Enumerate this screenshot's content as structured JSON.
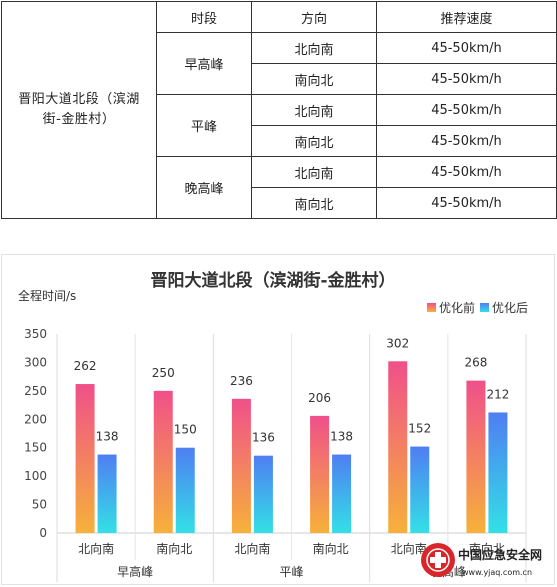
{
  "table": {
    "road_name": "晋阳大道北段（滨湖街-金胜村）",
    "headers": [
      "时段",
      "方向",
      "推荐速度"
    ],
    "rows": [
      {
        "period": "早高峰",
        "entries": [
          {
            "direction": "北向南",
            "speed": "45-50km/h"
          },
          {
            "direction": "南向北",
            "speed": "45-50km/h"
          }
        ]
      },
      {
        "period": "平峰",
        "entries": [
          {
            "direction": "北向南",
            "speed": "45-50km/h"
          },
          {
            "direction": "南向北",
            "speed": "45-50km/h"
          }
        ]
      },
      {
        "period": "晚高峰",
        "entries": [
          {
            "direction": "北向南",
            "speed": "45-50km/h"
          },
          {
            "direction": "南向北",
            "speed": "45-50km/h"
          }
        ]
      }
    ]
  },
  "chart_data": {
    "type": "bar",
    "title": "晋阳大道北段（滨湖街-金胜村）",
    "ylabel": "全程时间/s",
    "xlabel": "",
    "ylim": [
      0,
      350
    ],
    "yticks": [
      0,
      50,
      100,
      150,
      200,
      250,
      300,
      350
    ],
    "categories": [
      "北向南",
      "南向北",
      "北向南",
      "南向北",
      "北向南",
      "南向北"
    ],
    "groups": [
      {
        "label": "早高峰",
        "span": [
          0,
          1
        ]
      },
      {
        "label": "平峰",
        "span": [
          2,
          3
        ]
      },
      {
        "label": "晚高峰",
        "span": [
          4,
          5
        ]
      }
    ],
    "series": [
      {
        "name": "优化前",
        "values": [
          262,
          250,
          236,
          206,
          302,
          268
        ],
        "color_top": "#f0508a",
        "color_bottom": "#f6b13a"
      },
      {
        "name": "优化后",
        "values": [
          138,
          150,
          136,
          138,
          152,
          212
        ],
        "color_top": "#4f7ef2",
        "color_bottom": "#33e0e6"
      }
    ],
    "legend": "top-right",
    "grid": false
  },
  "watermark": {
    "text": "中国应急安全网",
    "url_text": "www.yjaq.com.cn"
  }
}
